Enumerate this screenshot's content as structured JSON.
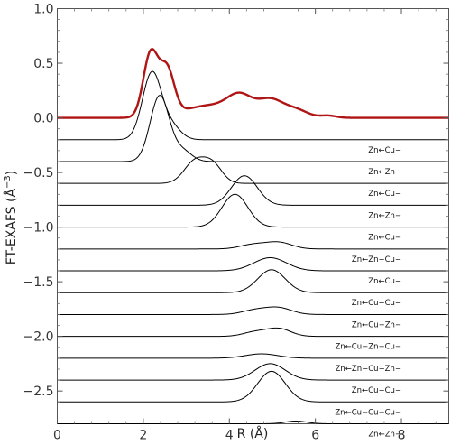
{
  "chart_data": {
    "type": "line",
    "xlabel": "R (Å)",
    "ylabel": "FT-EXAFS (Å",
    "ylabel_sup": "−3",
    "ylabel_close": ")",
    "xlim": [
      0,
      9.1
    ],
    "ylim": [
      -2.8,
      1.0
    ],
    "x_ticks": [
      0,
      2,
      4,
      6,
      8
    ],
    "x_tick_labels": [
      "0",
      "2",
      "4",
      "6",
      "8"
    ],
    "y_ticks": [
      1.0,
      0.5,
      0.0,
      -0.5,
      -1.0,
      -1.5,
      -2.0,
      -2.5
    ],
    "y_tick_labels": [
      "1.0",
      "0.5",
      "0.0",
      "−0.5",
      "−1.0",
      "−1.5",
      "−2.0",
      "−2.5"
    ],
    "grid": false,
    "experimental": {
      "color": "#b01515",
      "baseline": 0.0,
      "peaks": [
        {
          "center": 2.17,
          "width": 0.17,
          "amp": 0.58
        },
        {
          "center": 2.55,
          "width": 0.17,
          "amp": 0.42
        },
        {
          "center": 3.35,
          "width": 0.55,
          "amp": 0.08
        },
        {
          "center": 4.25,
          "width": 0.28,
          "amp": 0.16
        },
        {
          "center": 4.95,
          "width": 0.3,
          "amp": 0.16
        },
        {
          "center": 3.9,
          "width": 0.5,
          "amp": 0.05
        },
        {
          "center": 5.55,
          "width": 0.28,
          "amp": 0.07
        },
        {
          "center": 6.3,
          "width": 0.18,
          "amp": 0.02
        }
      ]
    },
    "paths": [
      {
        "label": "Zn←Cu−",
        "baseline": -0.2,
        "peaks": [
          {
            "center": 2.2,
            "width": 0.22,
            "amp": 0.61
          },
          {
            "center": 2.65,
            "width": 0.22,
            "amp": 0.12
          }
        ]
      },
      {
        "label": "Zn←Zn−",
        "baseline": -0.4,
        "peaks": [
          {
            "center": 2.38,
            "width": 0.22,
            "amp": 0.6
          },
          {
            "center": 2.9,
            "width": 0.22,
            "amp": 0.1
          }
        ]
      },
      {
        "label": "Zn←Cu−",
        "baseline": -0.6,
        "peaks": [
          {
            "center": 3.2,
            "width": 0.25,
            "amp": 0.2
          },
          {
            "center": 3.62,
            "width": 0.22,
            "amp": 0.16
          }
        ]
      },
      {
        "label": "Zn←Zn−",
        "baseline": -0.8,
        "peaks": [
          {
            "center": 4.35,
            "width": 0.3,
            "amp": 0.27
          }
        ]
      },
      {
        "label": "Zn←Cu−",
        "baseline": -1.0,
        "peaks": [
          {
            "center": 4.13,
            "width": 0.3,
            "amp": 0.3
          }
        ]
      },
      {
        "label": "Zn←Zn−Cu−",
        "baseline": -1.2,
        "peaks": [
          {
            "center": 4.55,
            "width": 0.3,
            "amp": 0.04
          },
          {
            "center": 5.15,
            "width": 0.3,
            "amp": 0.06
          }
        ]
      },
      {
        "label": "Zn←Cu−",
        "baseline": -1.4,
        "peaks": [
          {
            "center": 4.95,
            "width": 0.38,
            "amp": 0.12
          }
        ]
      },
      {
        "label": "Zn←Cu−Cu−",
        "baseline": -1.6,
        "peaks": [
          {
            "center": 4.98,
            "width": 0.32,
            "amp": 0.21
          }
        ]
      },
      {
        "label": "Zn←Cu−Zn−",
        "baseline": -1.8,
        "peaks": [
          {
            "center": 4.6,
            "width": 0.3,
            "amp": 0.04
          },
          {
            "center": 5.15,
            "width": 0.3,
            "amp": 0.06
          }
        ]
      },
      {
        "label": "Zn←Cu−Zn−Cu−",
        "baseline": -2.0,
        "peaks": [
          {
            "center": 4.6,
            "width": 0.28,
            "amp": 0.04
          },
          {
            "center": 5.15,
            "width": 0.28,
            "amp": 0.07
          }
        ]
      },
      {
        "label": "Zn←Zn−Cu−Zn−",
        "baseline": -2.2,
        "peaks": [
          {
            "center": 4.75,
            "width": 0.38,
            "amp": 0.04
          }
        ]
      },
      {
        "label": "Zn←Cu−Cu−",
        "baseline": -2.4,
        "peaks": [
          {
            "center": 4.95,
            "width": 0.35,
            "amp": 0.15
          }
        ]
      },
      {
        "label": "Zn←Cu−Cu−Cu−",
        "baseline": -2.6,
        "peaks": [
          {
            "center": 4.98,
            "width": 0.32,
            "amp": 0.28
          }
        ]
      },
      {
        "label": "Zn←Zn−",
        "baseline": -2.8,
        "peaks": [
          {
            "center": 5.55,
            "width": 0.25,
            "amp": 0.025
          }
        ]
      }
    ],
    "path_color": "#000000"
  }
}
